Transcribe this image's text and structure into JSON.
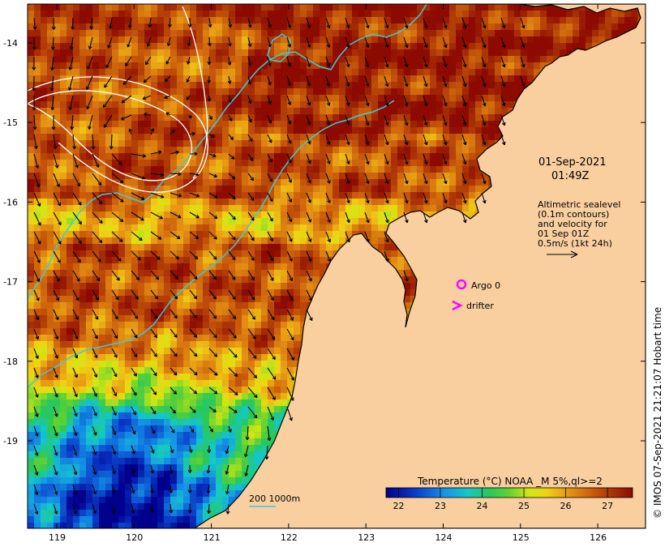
{
  "map": {
    "lat_ticks": [
      "-14",
      "-15",
      "-16",
      "-17",
      "-18",
      "-19"
    ],
    "lon_ticks": [
      "119",
      "120",
      "121",
      "122",
      "123",
      "124",
      "125",
      "126"
    ],
    "timestamp_date": "01-Sep-2021",
    "timestamp_time": "01:49Z",
    "altimetry_note": [
      "Altimetric sealevel",
      "(0.1m contours)",
      "and velocity for",
      "01 Sep 01Z",
      "0.5m/s (1kt 24h)"
    ],
    "argo_label": "Argo 0",
    "drifter_label": "drifter",
    "scale_label": "200  1000m",
    "credit": "© IMOS 07-Sep-2021 21:21:07 Hobart time",
    "colors": {
      "land": "#f9cfa0",
      "argo": "#ff00ff",
      "drifter": "#ff00ff",
      "isobath": "#40c8d8",
      "sealevel_contour": "#ffffff"
    }
  },
  "colorbar": {
    "title": "Temperature (°C) NOAA _M 5%,ql>=2",
    "ticks": [
      "22",
      "23",
      "24",
      "25",
      "26",
      "27"
    ],
    "range": [
      21.7,
      27.6
    ]
  }
}
